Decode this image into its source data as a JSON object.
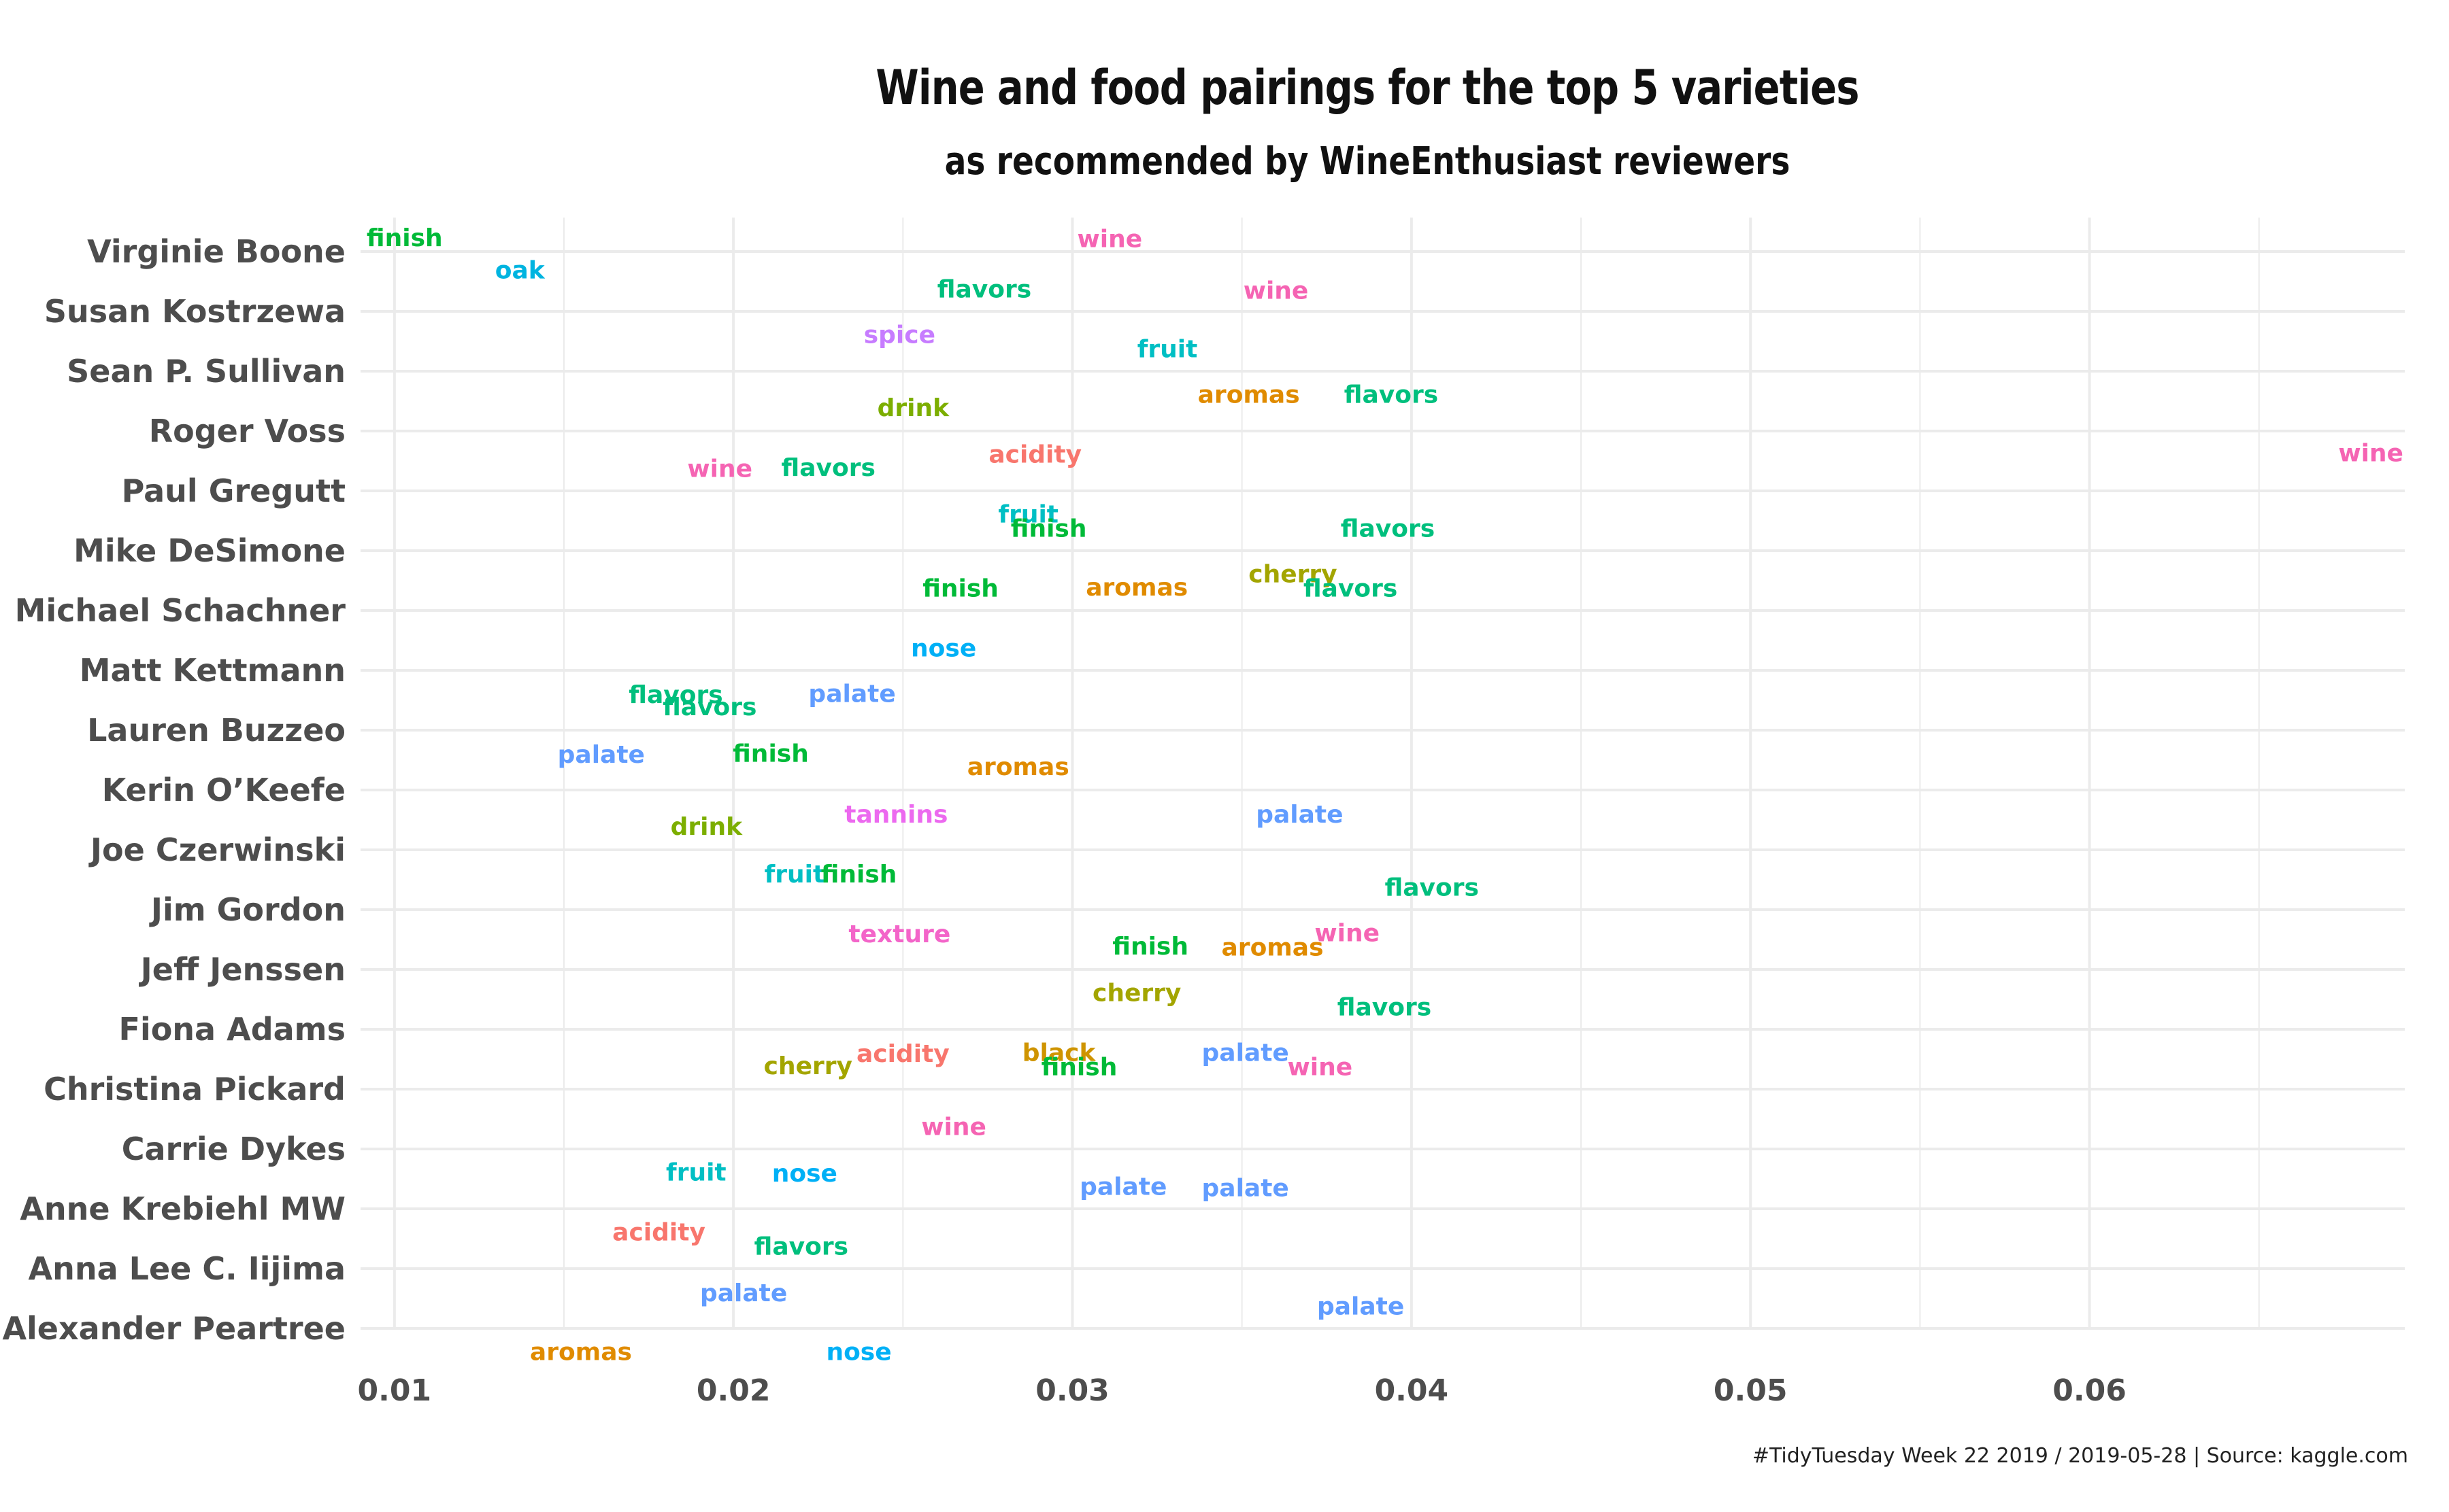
{
  "chart": {
    "title": "Wine and food pairings for the top 5 varieties",
    "subtitle": "as recommended by WineEnthusiast reviewers",
    "caption": "#TidyTuesday Week 22 2019 / 2019-05-28 | Source: kaggle.com"
  },
  "colors": {
    "finish": "#00ba38",
    "oak": "#00b4e0",
    "wine": "#f564b3",
    "flavors": "#00bf7d",
    "spice": "#c77cff",
    "fruit": "#00bfc4",
    "acidity": "#f8766d",
    "aromas": "#e08b00",
    "drink": "#7cae00",
    "cherry": "#a3a500",
    "palate": "#619cff",
    "nose": "#00b0f6",
    "tannins": "#ec69ef",
    "texture": "#f365c9",
    "black": "#cf9400",
    "grid": "#ebebeb",
    "axis_text": "#4d4d4d"
  },
  "chart_data": {
    "type": "scatter",
    "title": "Wine and food pairings for the top 5 varieties",
    "subtitle": "as recommended by WineEnthusiast reviewers",
    "xlabel": "",
    "ylabel": "",
    "xlim": [
      0.009,
      0.0693
    ],
    "x_ticks": [
      0.01,
      0.02,
      0.03,
      0.04,
      0.05,
      0.06
    ],
    "x_tick_labels": [
      "0.01",
      "0.02",
      "0.03",
      "0.04",
      "0.05",
      "0.06"
    ],
    "categories": [
      "Virginie Boone",
      "Susan Kostrzewa",
      "Sean P. Sullivan",
      "Roger Voss",
      "Paul Gregutt",
      "Mike DeSimone",
      "Michael Schachner",
      "Matt Kettmann",
      "Lauren Buzzeo",
      "Kerin O’Keefe",
      "Joe Czerwinski",
      "Jim Gordon",
      "Jeff Jenssen",
      "Fiona Adams",
      "Christina Pickard",
      "Carrie Dykes",
      "Anne Krebiehl MW",
      "Anna Lee C. Iijima",
      "Alexander Peartree"
    ],
    "grid": true,
    "legend": "none",
    "points": [
      {
        "reviewer": "Virginie Boone",
        "word": "finish",
        "x": 0.0103,
        "jitter": -0.24
      },
      {
        "reviewer": "Virginie Boone",
        "word": "oak",
        "x": 0.0137,
        "jitter": 0.3
      },
      {
        "reviewer": "Virginie Boone",
        "word": "wine",
        "x": 0.0311,
        "jitter": -0.22
      },
      {
        "reviewer": "Susan Kostrzewa",
        "word": "flavors",
        "x": 0.0274,
        "jitter": -0.38
      },
      {
        "reviewer": "Susan Kostrzewa",
        "word": "wine",
        "x": 0.036,
        "jitter": -0.36
      },
      {
        "reviewer": "Susan Kostrzewa",
        "word": "spice",
        "x": 0.0249,
        "jitter": 0.38
      },
      {
        "reviewer": "Sean P. Sullivan",
        "word": "fruit",
        "x": 0.0328,
        "jitter": -0.38
      },
      {
        "reviewer": "Sean P. Sullivan",
        "word": "aromas",
        "x": 0.0352,
        "jitter": 0.38
      },
      {
        "reviewer": "Sean P. Sullivan",
        "word": "flavors",
        "x": 0.0394,
        "jitter": 0.38
      },
      {
        "reviewer": "Roger Voss",
        "word": "acidity",
        "x": 0.0289,
        "jitter": 0.38
      },
      {
        "reviewer": "Roger Voss",
        "word": "wine",
        "x": 0.0683,
        "jitter": 0.36
      },
      {
        "reviewer": "Roger Voss",
        "word": "drink",
        "x": 0.0253,
        "jitter": -0.4
      },
      {
        "reviewer": "Paul Gregutt",
        "word": "fruit",
        "x": 0.0287,
        "jitter": 0.38
      },
      {
        "reviewer": "Paul Gregutt",
        "word": "wine",
        "x": 0.0196,
        "jitter": -0.38
      },
      {
        "reviewer": "Paul Gregutt",
        "word": "flavors",
        "x": 0.0228,
        "jitter": -0.4
      },
      {
        "reviewer": "Mike DeSimone",
        "word": "cherry",
        "x": 0.0365,
        "jitter": 0.38
      },
      {
        "reviewer": "Mike DeSimone",
        "word": "finish",
        "x": 0.0293,
        "jitter": -0.38
      },
      {
        "reviewer": "Mike DeSimone",
        "word": "flavors",
        "x": 0.0393,
        "jitter": -0.38
      },
      {
        "reviewer": "Michael Schachner",
        "word": "finish",
        "x": 0.0267,
        "jitter": -0.38
      },
      {
        "reviewer": "Michael Schachner",
        "word": "aromas",
        "x": 0.0319,
        "jitter": -0.4
      },
      {
        "reviewer": "Michael Schachner",
        "word": "flavors",
        "x": 0.0382,
        "jitter": -0.38
      },
      {
        "reviewer": "Matt Kettmann",
        "word": "flavors",
        "x": 0.0183,
        "jitter": 0.4
      },
      {
        "reviewer": "Matt Kettmann",
        "word": "palate",
        "x": 0.0235,
        "jitter": 0.38
      },
      {
        "reviewer": "Matt Kettmann",
        "word": "nose",
        "x": 0.0262,
        "jitter": -0.38
      },
      {
        "reviewer": "Lauren Buzzeo",
        "word": "palate",
        "x": 0.0161,
        "jitter": 0.4
      },
      {
        "reviewer": "Lauren Buzzeo",
        "word": "finish",
        "x": 0.0211,
        "jitter": 0.38
      },
      {
        "reviewer": "Lauren Buzzeo",
        "word": "flavors",
        "x": 0.0193,
        "jitter": -0.4
      },
      {
        "reviewer": "Kerin O’Keefe",
        "word": "tannins",
        "x": 0.0248,
        "jitter": 0.4
      },
      {
        "reviewer": "Kerin O’Keefe",
        "word": "palate",
        "x": 0.0367,
        "jitter": 0.4
      },
      {
        "reviewer": "Kerin O’Keefe",
        "word": "aromas",
        "x": 0.0284,
        "jitter": -0.4
      },
      {
        "reviewer": "Joe Czerwinski",
        "word": "fruit",
        "x": 0.0218,
        "jitter": 0.4
      },
      {
        "reviewer": "Joe Czerwinski",
        "word": "finish",
        "x": 0.0237,
        "jitter": 0.4
      },
      {
        "reviewer": "Joe Czerwinski",
        "word": "drink",
        "x": 0.0192,
        "jitter": -0.4
      },
      {
        "reviewer": "Jim Gordon",
        "word": "texture",
        "x": 0.0249,
        "jitter": 0.4
      },
      {
        "reviewer": "Jim Gordon",
        "word": "wine",
        "x": 0.0381,
        "jitter": 0.38
      },
      {
        "reviewer": "Jim Gordon",
        "word": "flavors",
        "x": 0.0406,
        "jitter": -0.38
      },
      {
        "reviewer": "Jeff Jenssen",
        "word": "cherry",
        "x": 0.0319,
        "jitter": 0.38
      },
      {
        "reviewer": "Jeff Jenssen",
        "word": "finish",
        "x": 0.0323,
        "jitter": -0.4
      },
      {
        "reviewer": "Jeff Jenssen",
        "word": "aromas",
        "x": 0.0359,
        "jitter": -0.38
      },
      {
        "reviewer": "Fiona Adams",
        "word": "flavors",
        "x": 0.0392,
        "jitter": -0.38
      },
      {
        "reviewer": "Fiona Adams",
        "word": "acidity",
        "x": 0.025,
        "jitter": 0.4
      },
      {
        "reviewer": "Fiona Adams",
        "word": "black",
        "x": 0.0296,
        "jitter": 0.38
      },
      {
        "reviewer": "Fiona Adams",
        "word": "palate",
        "x": 0.0351,
        "jitter": 0.38
      },
      {
        "reviewer": "Christina Pickard",
        "word": "cherry",
        "x": 0.0222,
        "jitter": -0.4
      },
      {
        "reviewer": "Christina Pickard",
        "word": "finish",
        "x": 0.0302,
        "jitter": -0.38
      },
      {
        "reviewer": "Christina Pickard",
        "word": "wine",
        "x": 0.0373,
        "jitter": -0.38
      },
      {
        "reviewer": "Carrie Dykes",
        "word": "fruit",
        "x": 0.0189,
        "jitter": 0.38
      },
      {
        "reviewer": "Carrie Dykes",
        "word": "nose",
        "x": 0.0221,
        "jitter": 0.4
      },
      {
        "reviewer": "Carrie Dykes",
        "word": "wine",
        "x": 0.0265,
        "jitter": -0.38
      },
      {
        "reviewer": "Anne Krebiehl MW",
        "word": "palate",
        "x": 0.0315,
        "jitter": -0.38
      },
      {
        "reviewer": "Anne Krebiehl MW",
        "word": "palate",
        "x": 0.0351,
        "jitter": -0.36
      },
      {
        "reviewer": "Anne Krebiehl MW",
        "word": "acidity",
        "x": 0.0178,
        "jitter": 0.38
      },
      {
        "reviewer": "Anna Lee C. Iijima",
        "word": "flavors",
        "x": 0.022,
        "jitter": -0.38
      },
      {
        "reviewer": "Anna Lee C. Iijima",
        "word": "palate",
        "x": 0.0203,
        "jitter": 0.4
      },
      {
        "reviewer": "Alexander Peartree",
        "word": "palate",
        "x": 0.0385,
        "jitter": -0.38
      },
      {
        "reviewer": "Alexander Peartree",
        "word": "aromas",
        "x": 0.0155,
        "jitter": 0.38
      },
      {
        "reviewer": "Alexander Peartree",
        "word": "nose",
        "x": 0.0237,
        "jitter": 0.38
      }
    ]
  }
}
